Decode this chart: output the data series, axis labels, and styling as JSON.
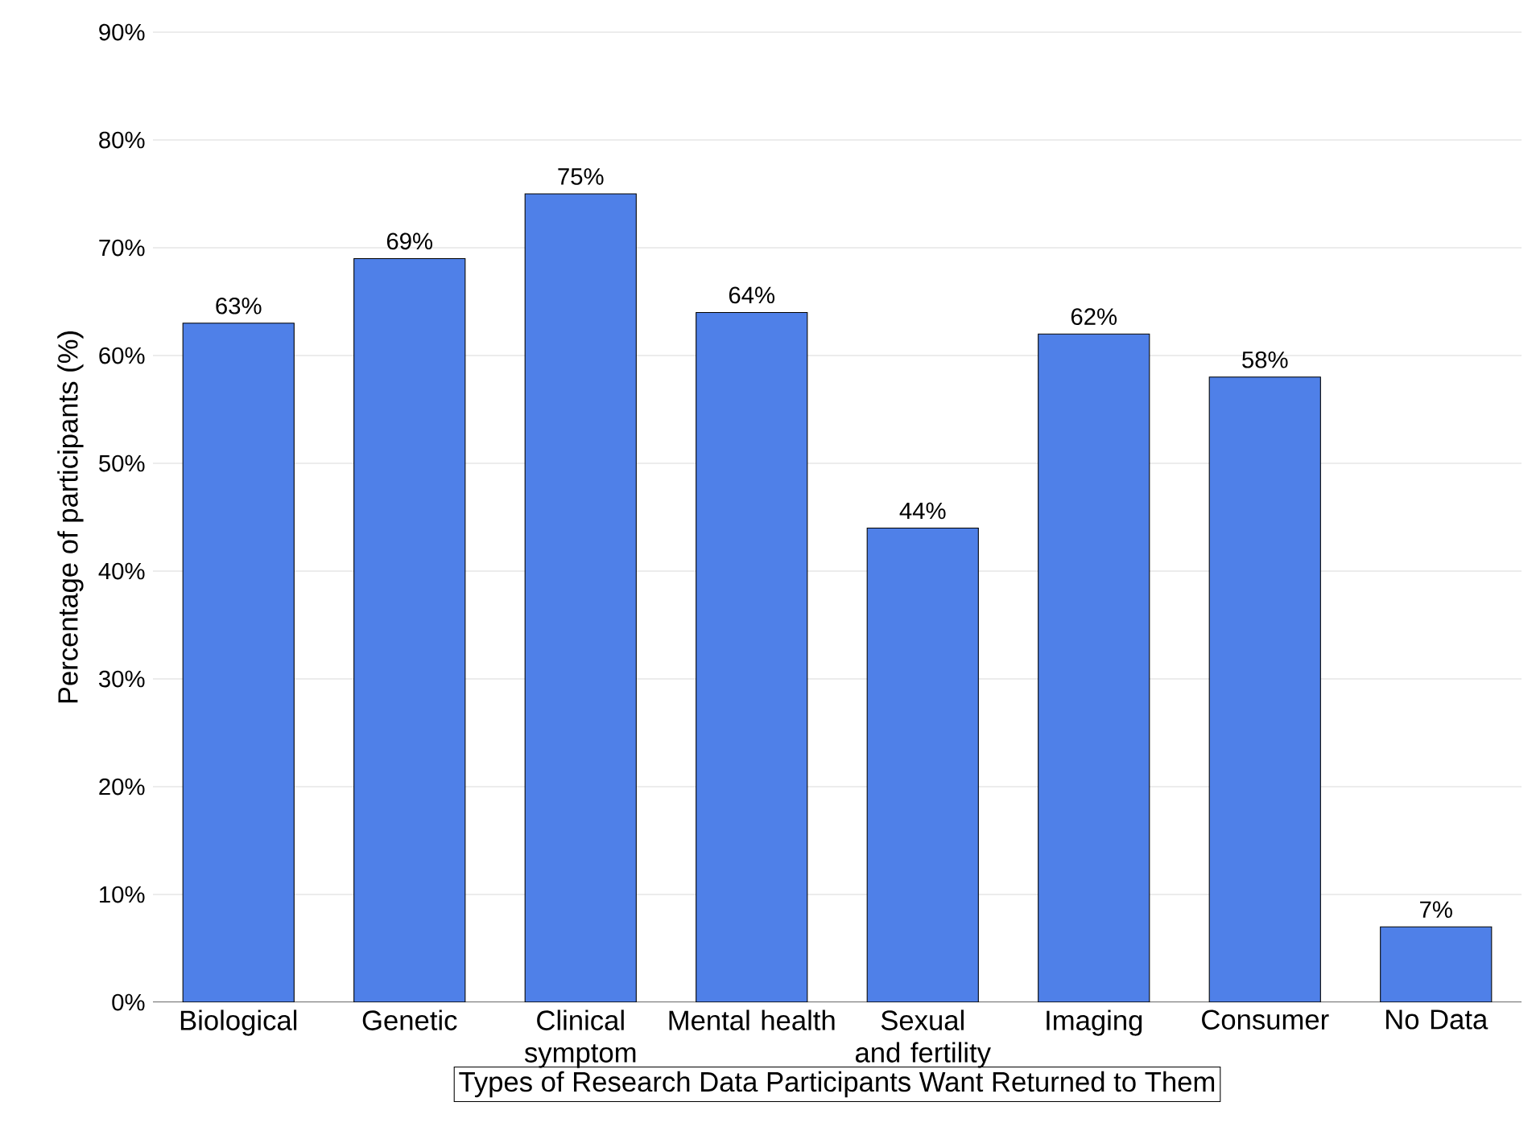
{
  "chart_data": {
    "type": "bar",
    "xlabel": "Types of Research Data Participants Want Returned to Them",
    "ylabel": "Percentage of participants (%)",
    "categories": [
      "Biological",
      "Genetic",
      "Clinical symptom",
      "Mental health",
      "Sexual and fertility",
      "Imaging",
      "Consumer",
      "No Data"
    ],
    "values": [
      63,
      69,
      75,
      64,
      44,
      62,
      58,
      7
    ],
    "value_labels": [
      "63%",
      "69%",
      "75%",
      "64%",
      "44%",
      "62%",
      "58%",
      "7%"
    ],
    "color": "#4f80e8",
    "ylim": [
      0,
      90
    ],
    "yticks": [
      {
        "value": 0,
        "label": "0%"
      },
      {
        "value": 10,
        "label": "10%"
      },
      {
        "value": 20,
        "label": "20%"
      },
      {
        "value": 30,
        "label": "30%"
      },
      {
        "value": 40,
        "label": "40%"
      },
      {
        "value": 50,
        "label": "50%"
      },
      {
        "value": 60,
        "label": "60%"
      },
      {
        "value": 70,
        "label": "70%"
      },
      {
        "value": 80,
        "label": "80%"
      },
      {
        "value": 90,
        "label": "90%"
      }
    ],
    "grid": "y"
  }
}
